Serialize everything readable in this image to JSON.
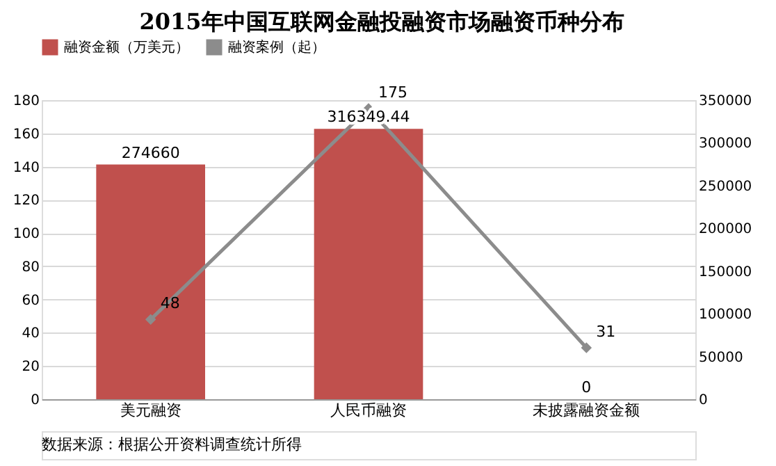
{
  "chart_data": {
    "type": "bar",
    "title": "2015年中国互联网金融投融资市场融资币种分布",
    "categories": [
      "美元融资",
      "人民币融资",
      "未披露融资金额"
    ],
    "series": [
      {
        "name": "融资金额（万美元）",
        "color": "#c0504d",
        "values": [
          274660,
          316349.44,
          0
        ],
        "axis": "y2",
        "value_labels": [
          "274660",
          "316349.44",
          "0"
        ]
      },
      {
        "name": "融资案例（起）",
        "type": "line",
        "color": "#8c8c8c",
        "values": [
          48,
          175,
          31
        ],
        "marker": "diamond",
        "value_labels": [
          "48",
          "175",
          "31"
        ]
      }
    ],
    "ylim": [
      0,
      180
    ],
    "yticks": [
      0,
      20,
      40,
      60,
      80,
      100,
      120,
      140,
      160,
      180
    ],
    "y2lim": [
      0,
      350000
    ],
    "y2ticks": [
      0,
      50000,
      100000,
      150000,
      200000,
      250000,
      300000,
      350000
    ],
    "grid": "y",
    "legend": "top",
    "annotations": [
      "数据来源：根据公开资料调查统计所得"
    ]
  }
}
